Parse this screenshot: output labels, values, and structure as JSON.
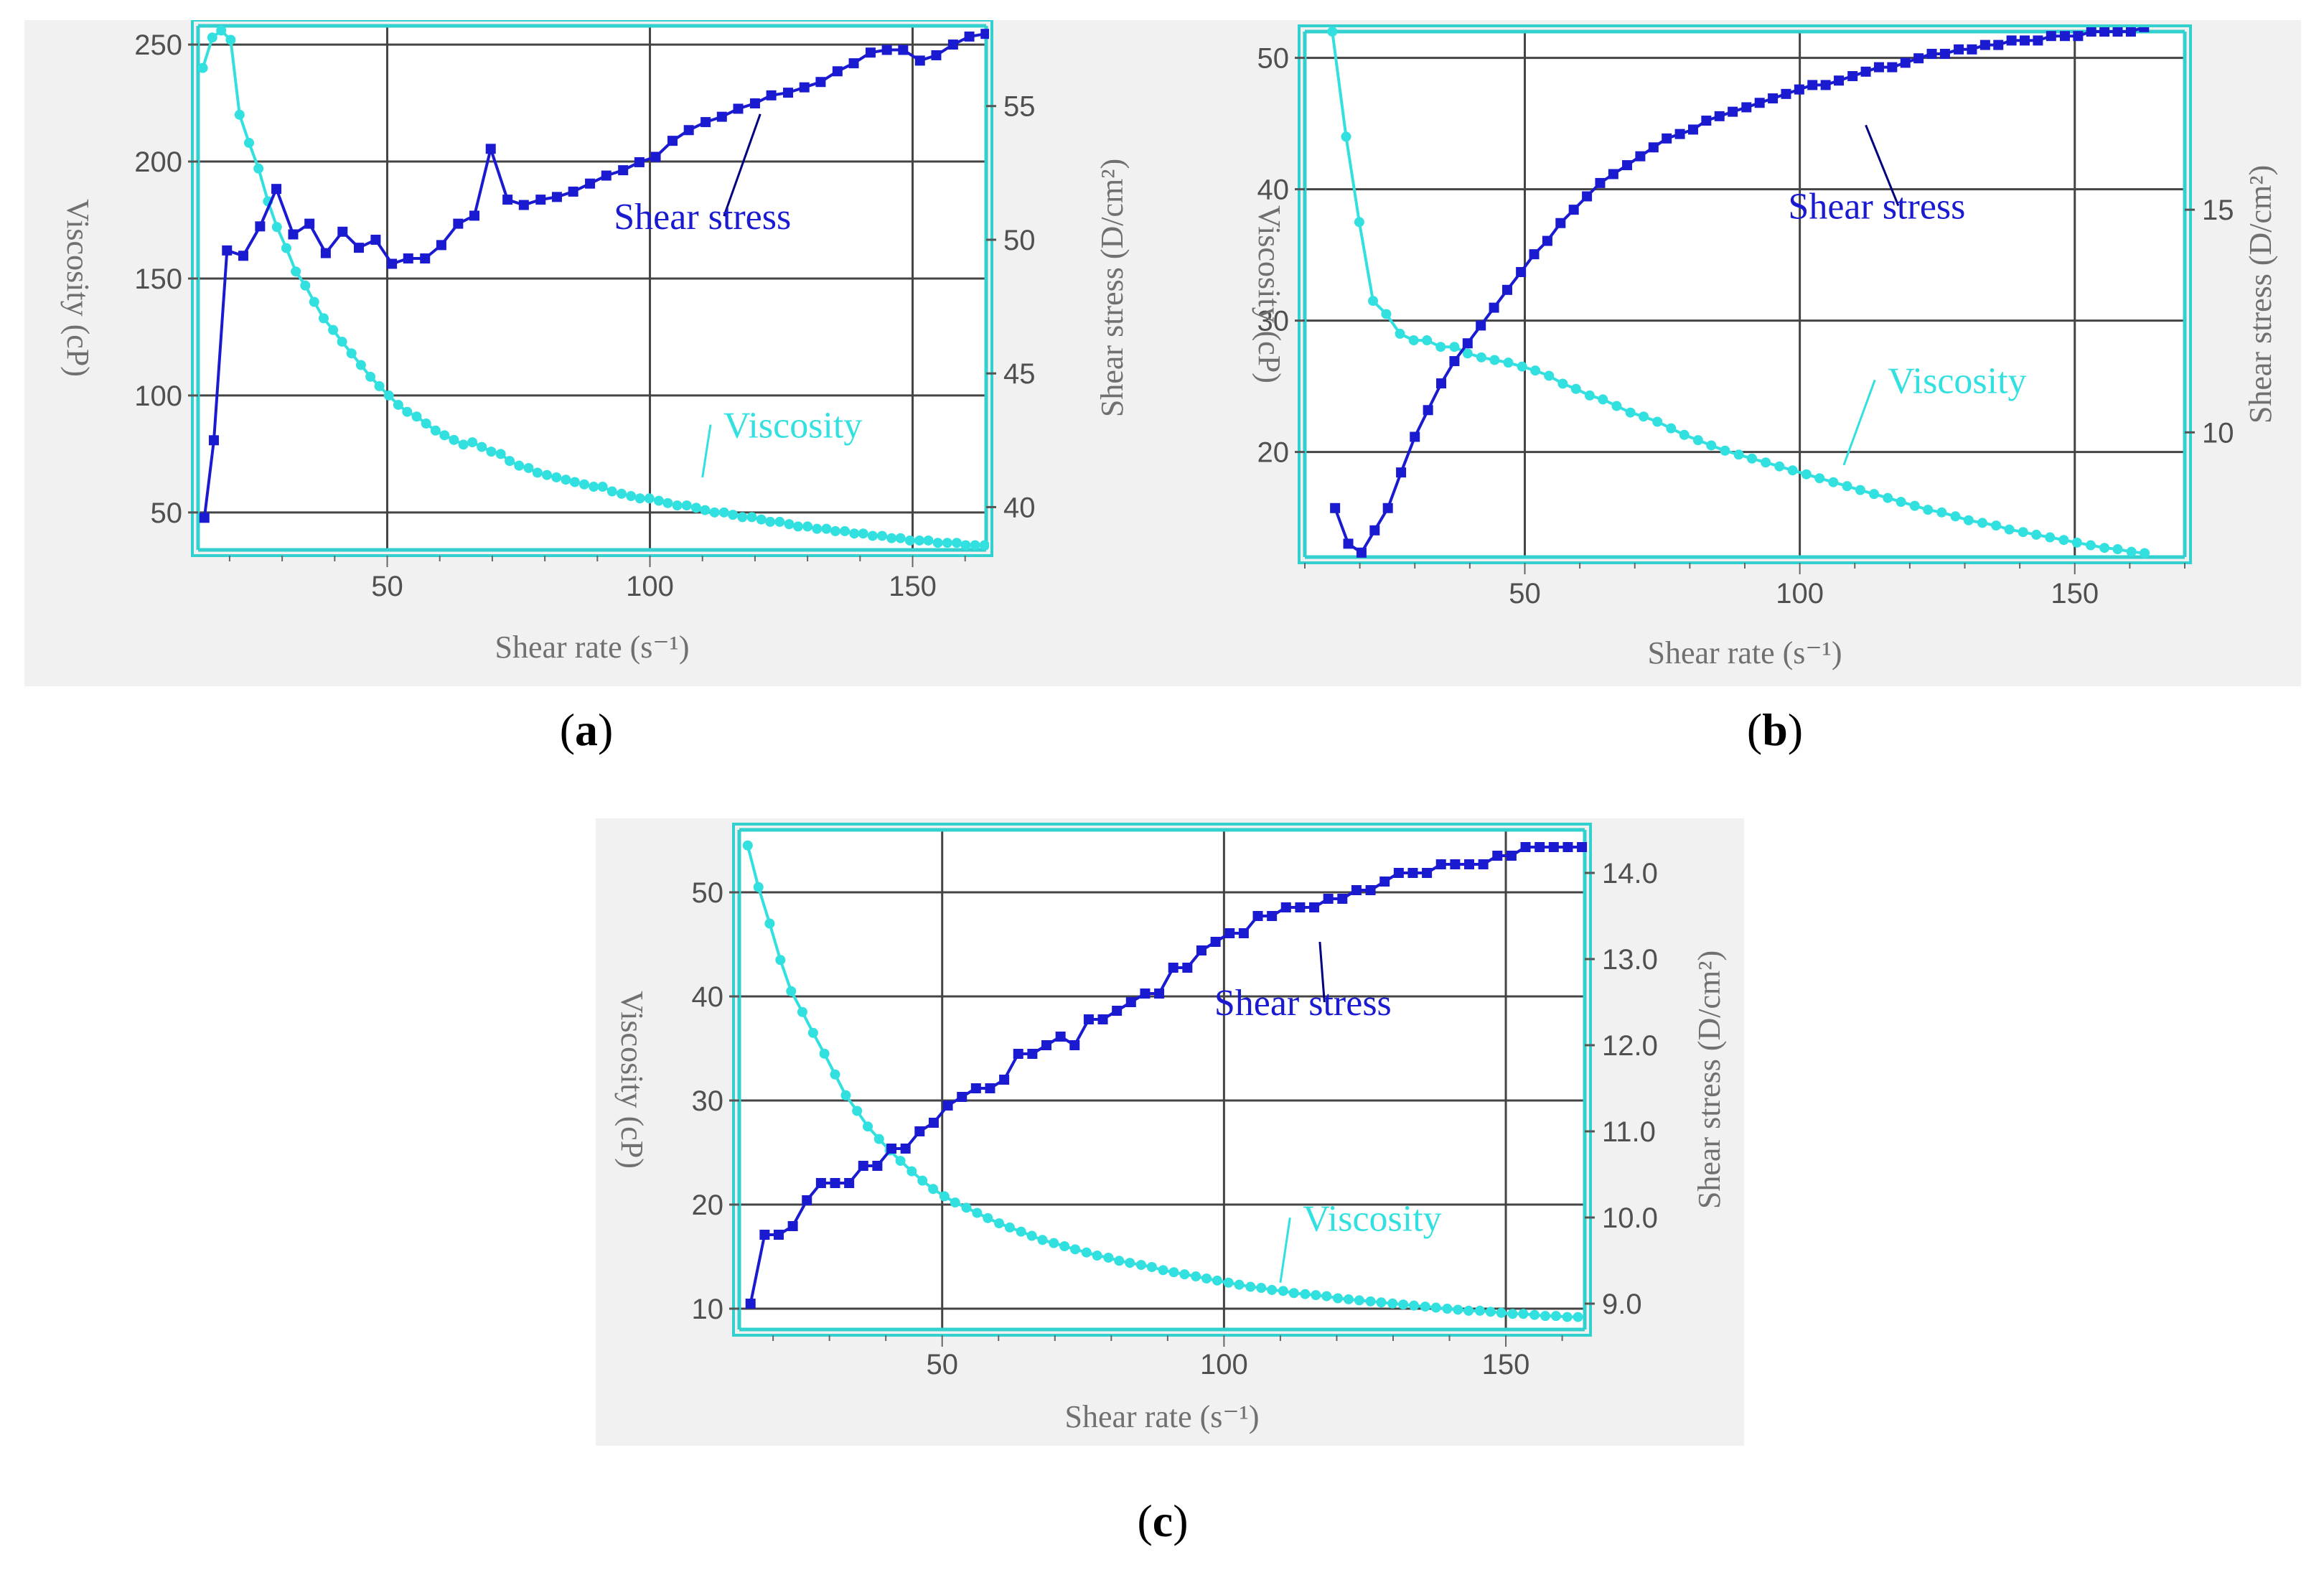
{
  "colors": {
    "viscosity": "#33e0e0",
    "shear_stress": "#1a1ad0",
    "panel_bg": "#f1f1f1",
    "plot_bg": "#ffffff",
    "grid": "#444444",
    "frame": "#33d0d0",
    "axis_text": "#707070",
    "tick_text": "#505050"
  },
  "panel_labels": [
    {
      "open": "(",
      "letter": "a",
      "close": ")"
    },
    {
      "open": "(",
      "letter": "b",
      "close": ")"
    },
    {
      "open": "(",
      "letter": "c",
      "close": ")"
    }
  ],
  "chart_data": [
    {
      "type": "line",
      "panel": "a",
      "xlabel": "Shear rate (s⁻¹)",
      "ylabel_left": "Viscosity (cP)",
      "ylabel_right": "Shear stress (D/cm²)",
      "xlim": [
        14,
        164
      ],
      "ylim_left": [
        34,
        258
      ],
      "ylim_right": [
        38.4,
        58.0
      ],
      "xticks": [
        50,
        100,
        150
      ],
      "yticks_left": [
        50,
        100,
        150,
        200,
        250
      ],
      "yticks_right": [
        40,
        45,
        50,
        55
      ],
      "series": [
        {
          "name": "Viscosity",
          "axis": "left",
          "annotation": "Viscosity",
          "annotation_anchor": [
            110,
            65
          ],
          "annotation_text_at": [
            114,
            82
          ],
          "x": [
            14.9,
            16.7,
            18.4,
            20.2,
            21.9,
            23.7,
            25.5,
            27.3,
            29.0,
            30.8,
            32.6,
            34.4,
            36.1,
            37.9,
            39.7,
            41.4,
            43.2,
            45.0,
            46.8,
            48.5,
            50.3,
            52.1,
            53.8,
            55.6,
            57.4,
            59.2,
            60.9,
            62.7,
            64.5,
            66.2,
            68.0,
            69.8,
            71.6,
            73.3,
            75.1,
            76.9,
            78.6,
            80.4,
            82.2,
            84.0,
            85.7,
            87.5,
            89.3,
            91.0,
            92.8,
            94.6,
            96.4,
            98.1,
            99.9,
            101.7,
            103.4,
            105.2,
            107.0,
            108.8,
            110.5,
            112.3,
            114.1,
            115.8,
            117.6,
            119.4,
            121.2,
            122.9,
            124.7,
            126.5,
            128.2,
            130.0,
            131.8,
            133.6,
            135.3,
            137.1,
            138.9,
            140.6,
            142.4,
            144.2,
            146.0,
            147.7,
            149.5,
            151.3,
            153.0,
            154.8,
            156.6,
            158.4,
            160.1,
            161.9,
            163.7
          ],
          "y": [
            240,
            253,
            256,
            252,
            220,
            208,
            197,
            183,
            172,
            163,
            153,
            147,
            140,
            133,
            128,
            123,
            118,
            113,
            108,
            104,
            100,
            96,
            93,
            91,
            88,
            85,
            83,
            81,
            79,
            80,
            78,
            76,
            75,
            72,
            70,
            69,
            67,
            66,
            65,
            64,
            63,
            62,
            61,
            61,
            59,
            58,
            57,
            56,
            56,
            55,
            54,
            53,
            53,
            52,
            51,
            50,
            50,
            49,
            48,
            48,
            47,
            46,
            46,
            45,
            44,
            44,
            43,
            43,
            42,
            42,
            41,
            41,
            40,
            40,
            39,
            39,
            38,
            38,
            38,
            37,
            37,
            37,
            36,
            36,
            36
          ]
        },
        {
          "name": "Shear stress",
          "axis": "right",
          "annotation": "Shear stress",
          "annotation_anchor": [
            121,
            54.7
          ],
          "annotation_text_at": [
            110,
            50.4
          ],
          "x": [
            15.2,
            17.0,
            19.5,
            22.6,
            25.8,
            28.9,
            32.1,
            35.2,
            38.3,
            41.5,
            44.6,
            47.8,
            50.9,
            54.0,
            57.2,
            60.3,
            63.5,
            66.6,
            69.7,
            72.9,
            76.0,
            79.2,
            82.3,
            85.4,
            88.6,
            91.7,
            94.9,
            98.0,
            101.1,
            104.3,
            107.4,
            110.6,
            113.7,
            116.8,
            120.0,
            123.1,
            126.3,
            129.4,
            132.5,
            135.7,
            138.8,
            142.0,
            145.1,
            148.2,
            151.4,
            154.5,
            157.7,
            160.8,
            163.9
          ],
          "y": [
            39.6,
            42.5,
            49.6,
            49.4,
            50.5,
            51.9,
            50.2,
            50.6,
            49.5,
            50.3,
            49.7,
            50.0,
            49.1,
            49.3,
            49.3,
            49.8,
            50.6,
            50.9,
            53.4,
            51.5,
            51.3,
            51.5,
            51.6,
            51.8,
            52.1,
            52.4,
            52.6,
            52.9,
            53.1,
            53.7,
            54.1,
            54.4,
            54.6,
            54.9,
            55.1,
            55.4,
            55.5,
            55.7,
            55.9,
            56.3,
            56.6,
            57.0,
            57.1,
            57.1,
            56.7,
            56.9,
            57.3,
            57.6,
            57.7
          ]
        }
      ]
    },
    {
      "type": "line",
      "panel": "b",
      "xlabel": "Shear rate (s⁻¹)",
      "ylabel_left": "Viscosity (cP)",
      "ylabel_right": "Shear stress (D/cm²)",
      "xlim": [
        10,
        170
      ],
      "ylim_left": [
        12,
        52
      ],
      "ylim_right": [
        7.2,
        19.0
      ],
      "xticks": [
        50,
        100,
        150
      ],
      "yticks_left": [
        20,
        30,
        40,
        50
      ],
      "yticks_right": [
        10,
        15
      ],
      "series": [
        {
          "name": "Viscosity",
          "axis": "left",
          "annotation": "Viscosity",
          "annotation_anchor": [
            108,
            19
          ],
          "annotation_text_at": [
            116,
            24.5
          ],
          "x": [
            15.0,
            17.5,
            19.9,
            22.4,
            24.8,
            27.3,
            29.8,
            32.2,
            34.7,
            37.2,
            39.6,
            42.1,
            44.5,
            47.0,
            49.5,
            51.9,
            54.4,
            56.9,
            59.3,
            61.8,
            64.2,
            66.7,
            69.2,
            71.6,
            74.1,
            76.6,
            79.0,
            81.5,
            83.9,
            86.4,
            88.9,
            91.3,
            93.8,
            96.3,
            98.7,
            101.2,
            103.6,
            106.1,
            108.6,
            111.0,
            113.5,
            116.0,
            118.4,
            120.9,
            123.3,
            125.8,
            128.3,
            130.7,
            133.2,
            135.7,
            138.1,
            140.6,
            143.0,
            145.5,
            148.0,
            150.4,
            152.9,
            155.4,
            157.8,
            160.3,
            162.7
          ],
          "y": [
            52,
            44,
            37.5,
            31.5,
            30.5,
            29.0,
            28.5,
            28.5,
            28.0,
            28.0,
            27.5,
            27.2,
            27.0,
            26.8,
            26.5,
            26.2,
            25.8,
            25.2,
            24.8,
            24.3,
            24.0,
            23.5,
            23.0,
            22.7,
            22.3,
            21.8,
            21.3,
            20.9,
            20.5,
            20.1,
            19.8,
            19.5,
            19.2,
            18.9,
            18.6,
            18.3,
            18.0,
            17.7,
            17.4,
            17.1,
            16.8,
            16.5,
            16.2,
            15.9,
            15.6,
            15.4,
            15.1,
            14.8,
            14.6,
            14.4,
            14.1,
            13.9,
            13.7,
            13.5,
            13.3,
            13.1,
            12.9,
            12.7,
            12.6,
            12.4,
            12.3
          ]
        },
        {
          "name": "Shear stress",
          "axis": "right",
          "annotation": "Shear stress",
          "annotation_anchor": [
            112,
            16.9
          ],
          "annotation_text_at": [
            114,
            14.8
          ],
          "x": [
            15.5,
            17.9,
            20.3,
            22.7,
            25.1,
            27.5,
            30.0,
            32.4,
            34.8,
            37.2,
            39.6,
            42.0,
            44.4,
            46.8,
            49.3,
            51.7,
            54.1,
            56.5,
            58.9,
            61.3,
            63.7,
            66.1,
            68.6,
            71.0,
            73.4,
            75.8,
            78.2,
            80.6,
            83.0,
            85.4,
            87.8,
            90.3,
            92.7,
            95.1,
            97.5,
            99.9,
            102.3,
            104.7,
            107.1,
            109.6,
            112.0,
            114.4,
            116.8,
            119.2,
            121.6,
            124.0,
            126.4,
            128.9,
            131.3,
            133.7,
            136.1,
            138.5,
            140.9,
            143.3,
            145.7,
            148.2,
            150.6,
            153.0,
            155.4,
            157.8,
            160.2,
            162.6
          ],
          "y": [
            8.3,
            7.5,
            7.3,
            7.8,
            8.3,
            9.1,
            9.9,
            10.5,
            11.1,
            11.6,
            12.0,
            12.4,
            12.8,
            13.2,
            13.6,
            14.0,
            14.3,
            14.7,
            15.0,
            15.3,
            15.6,
            15.8,
            16.0,
            16.2,
            16.4,
            16.6,
            16.7,
            16.8,
            17.0,
            17.1,
            17.2,
            17.3,
            17.4,
            17.5,
            17.6,
            17.7,
            17.8,
            17.8,
            17.9,
            18.0,
            18.1,
            18.2,
            18.2,
            18.3,
            18.4,
            18.5,
            18.5,
            18.6,
            18.6,
            18.7,
            18.7,
            18.8,
            18.8,
            18.8,
            18.9,
            18.9,
            18.9,
            19.0,
            19.0,
            19.0,
            19.0,
            19.1
          ]
        }
      ]
    },
    {
      "type": "line",
      "panel": "c",
      "xlabel": "Shear rate (s⁻¹)",
      "ylabel_left": "Viscosity (cP)",
      "ylabel_right": "Shear stress (D/cm²)",
      "xlim": [
        14,
        164
      ],
      "ylim_left": [
        8,
        56
      ],
      "ylim_right": [
        8.7,
        14.5
      ],
      "xticks": [
        50,
        100,
        150
      ],
      "yticks_left": [
        10,
        20,
        30,
        40,
        50
      ],
      "yticks_right": [
        9.0,
        10.0,
        11.0,
        12.0,
        13.0,
        14.0
      ],
      "series": [
        {
          "name": "Viscosity",
          "axis": "left",
          "annotation": "Viscosity",
          "annotation_anchor": [
            110,
            12.5
          ],
          "annotation_text_at": [
            114,
            17.5
          ],
          "x": [
            15.5,
            17.4,
            19.4,
            21.3,
            23.2,
            25.2,
            27.1,
            29.1,
            31.0,
            32.9,
            34.9,
            36.8,
            38.8,
            40.7,
            42.6,
            44.6,
            46.5,
            48.4,
            50.4,
            52.3,
            54.3,
            56.2,
            58.1,
            60.1,
            62.0,
            64.0,
            65.9,
            67.8,
            69.8,
            71.7,
            73.6,
            75.6,
            77.5,
            79.5,
            81.4,
            83.3,
            85.3,
            87.2,
            89.2,
            91.1,
            93.0,
            95.0,
            96.9,
            98.8,
            100.8,
            102.7,
            104.7,
            106.6,
            108.5,
            110.5,
            112.4,
            114.4,
            116.3,
            118.2,
            120.2,
            122.1,
            124.0,
            126.0,
            127.9,
            129.9,
            131.8,
            133.7,
            135.7,
            137.6,
            139.6,
            141.5,
            143.4,
            145.4,
            147.3,
            149.2,
            151.2,
            153.1,
            155.1,
            157.0,
            158.9,
            160.9,
            162.8
          ],
          "y": [
            54.5,
            50.5,
            47.0,
            43.5,
            40.5,
            38.5,
            36.5,
            34.5,
            32.5,
            30.5,
            29.0,
            27.5,
            26.3,
            25.2,
            24.2,
            23.2,
            22.3,
            21.5,
            20.8,
            20.2,
            19.7,
            19.2,
            18.7,
            18.2,
            17.8,
            17.4,
            17.0,
            16.6,
            16.3,
            16.0,
            15.7,
            15.4,
            15.1,
            14.9,
            14.6,
            14.4,
            14.2,
            14.0,
            13.7,
            13.5,
            13.3,
            13.1,
            12.9,
            12.7,
            12.5,
            12.3,
            12.1,
            12.0,
            11.8,
            11.7,
            11.5,
            11.4,
            11.3,
            11.2,
            11.0,
            10.9,
            10.8,
            10.7,
            10.6,
            10.5,
            10.4,
            10.3,
            10.2,
            10.1,
            10.0,
            9.9,
            9.8,
            9.8,
            9.7,
            9.6,
            9.5,
            9.5,
            9.4,
            9.3,
            9.3,
            9.2,
            9.2
          ]
        },
        {
          "name": "Shear stress",
          "axis": "right",
          "annotation": "Shear stress",
          "annotation_anchor": [
            117,
            13.2
          ],
          "annotation_text_at": [
            114,
            12.35
          ],
          "x": [
            16.0,
            18.5,
            21.0,
            23.5,
            26.0,
            28.5,
            31.0,
            33.5,
            36.0,
            38.5,
            41.0,
            43.5,
            46.0,
            48.5,
            51.0,
            53.5,
            56.0,
            58.5,
            61.0,
            63.5,
            66.0,
            68.5,
            71.0,
            73.5,
            76.0,
            78.5,
            81.0,
            83.5,
            86.0,
            88.5,
            91.0,
            93.5,
            96.0,
            98.5,
            101.0,
            103.5,
            106.0,
            108.5,
            111.0,
            113.5,
            116.0,
            118.5,
            121.0,
            123.5,
            126.0,
            128.5,
            131.0,
            133.5,
            136.0,
            138.5,
            141.0,
            143.5,
            146.0,
            148.5,
            151.0,
            153.5,
            156.0,
            158.5,
            161.0,
            163.5
          ],
          "y": [
            9.0,
            9.8,
            9.8,
            9.9,
            10.2,
            10.4,
            10.4,
            10.4,
            10.6,
            10.6,
            10.8,
            10.8,
            11.0,
            11.1,
            11.3,
            11.4,
            11.5,
            11.5,
            11.6,
            11.9,
            11.9,
            12.0,
            12.1,
            12.0,
            12.3,
            12.3,
            12.4,
            12.5,
            12.6,
            12.6,
            12.9,
            12.9,
            13.1,
            13.2,
            13.3,
            13.3,
            13.5,
            13.5,
            13.6,
            13.6,
            13.6,
            13.7,
            13.7,
            13.8,
            13.8,
            13.9,
            14.0,
            14.0,
            14.0,
            14.1,
            14.1,
            14.1,
            14.1,
            14.2,
            14.2,
            14.3,
            14.3,
            14.3,
            14.3,
            14.3
          ]
        }
      ]
    }
  ]
}
